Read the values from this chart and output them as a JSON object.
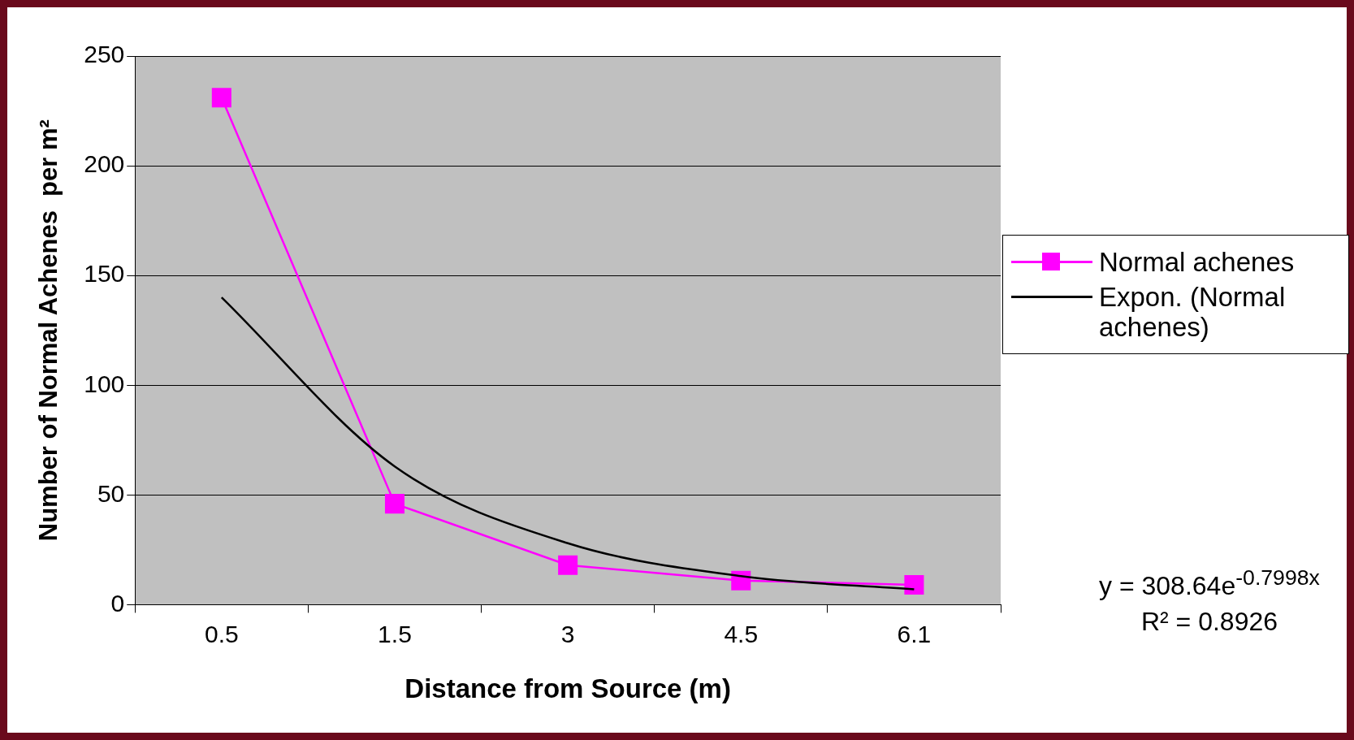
{
  "chart_data": {
    "type": "line",
    "xlabel": "Distance from Source (m)",
    "ylabel": "Number of Normal Achenes  per m²",
    "categories": [
      "0.5",
      "1.5",
      "3",
      "4.5",
      "6.1"
    ],
    "series": [
      {
        "name": "Normal achenes",
        "color": "#ff00ff",
        "values": [
          231,
          46,
          18,
          11,
          9
        ],
        "marker": "square"
      },
      {
        "name": "Expon. (Normal achenes)",
        "color": "#000000",
        "values": [
          140,
          63,
          28,
          13,
          7
        ],
        "marker": "none"
      }
    ],
    "ylim": [
      0,
      250
    ],
    "yticks": [
      0,
      50,
      100,
      150,
      200,
      250
    ],
    "grid": "y",
    "legend": "right",
    "annotations": [
      "y = 308.64e$^{-0.7998x}$",
      "R² = 0.8926"
    ]
  }
}
